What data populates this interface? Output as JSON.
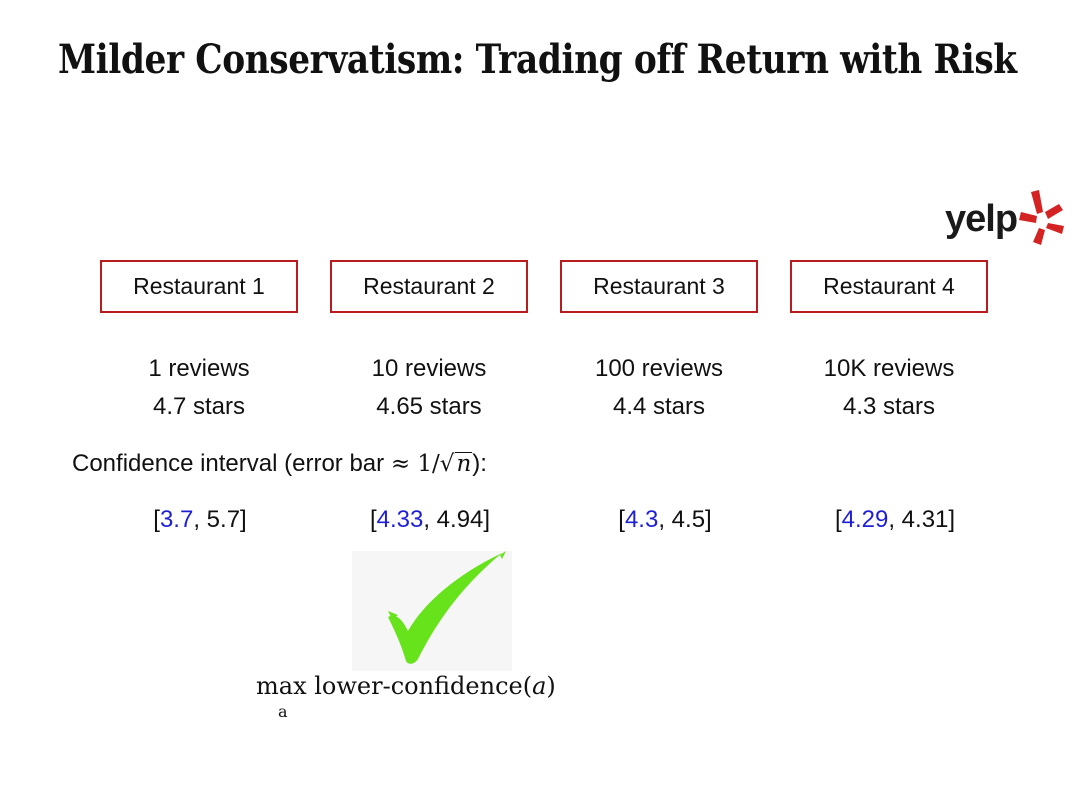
{
  "title": "Milder Conservatism: Trading off Return with Risk",
  "logo": {
    "text": "yelp",
    "icon": "yelp-burst-icon",
    "color": "#d32323"
  },
  "restaurants": [
    {
      "name": "Restaurant 1",
      "reviews": "1 reviews",
      "stars": "4.7 stars",
      "ci_low": "3.7",
      "ci_high": "5.7"
    },
    {
      "name": "Restaurant 2",
      "reviews": "10 reviews",
      "stars": "4.65 stars",
      "ci_low": "4.33",
      "ci_high": "4.94"
    },
    {
      "name": "Restaurant 3",
      "reviews": "100 reviews",
      "stars": "4.4 stars",
      "ci_low": "4.3",
      "ci_high": "4.5"
    },
    {
      "name": "Restaurant 4",
      "reviews": "10K reviews",
      "stars": "4.3 stars",
      "ci_low": "4.29",
      "ci_high": "4.31"
    }
  ],
  "confidence": {
    "label": "Confidence interval (error bar",
    "approx": "≈",
    "one": "1",
    "slash": "/",
    "var": "n",
    "close": "):"
  },
  "interval_punct": {
    "open": "[",
    "sep": ", ",
    "close": "]"
  },
  "objective": {
    "op": "max",
    "sub": "a",
    "text": "lower-confidence(",
    "arg": "a",
    "close": ")"
  },
  "checkmark": {
    "icon": "checkmark-icon",
    "color": "#66e31a"
  },
  "colors": {
    "box_border": "#b81c1c",
    "lower_bound": "#1f1fd6"
  }
}
